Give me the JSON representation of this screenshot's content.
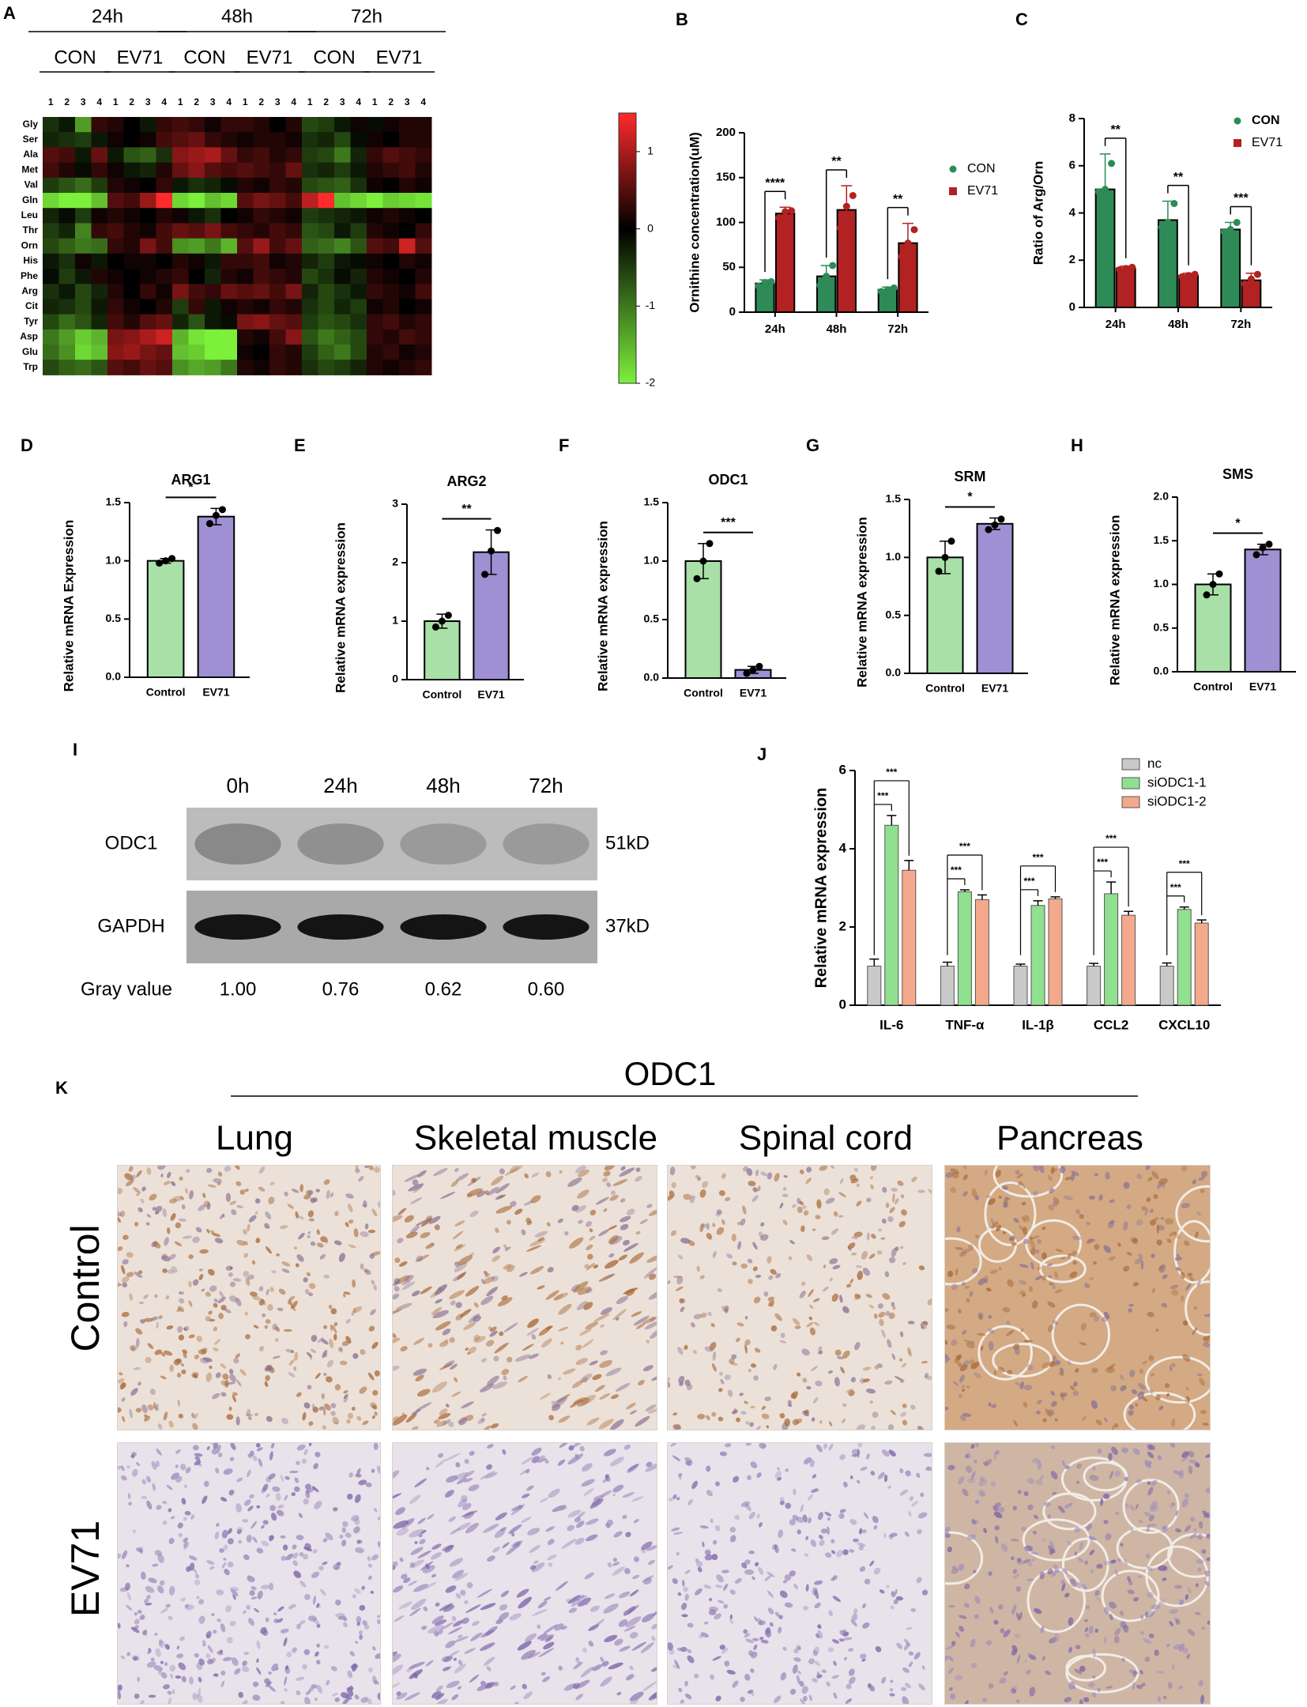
{
  "colors": {
    "green_dark": "#2e8b57",
    "red_dark": "#b22222",
    "green_light": "#a8e0a8",
    "purple": "#9f8fd3",
    "grey": "#c9c9c9",
    "green_mid": "#8fe08f",
    "salmon": "#f4a98c",
    "heat_high": "#ff2a2a",
    "heat_mid": "#000000",
    "heat_low": "#7cf03a",
    "stain_brown": "#a86a3a",
    "stain_purple": "#7a64a8",
    "tissue_bg_control": "#ece1d8",
    "tissue_bg_ev71": "#e8e2ea"
  },
  "panels": {
    "A": {
      "label": "A",
      "times": [
        "24h",
        "48h",
        "72h"
      ],
      "groups": [
        "CON",
        "EV71",
        "CON",
        "EV71",
        "CON",
        "EV71"
      ],
      "replicates": [
        "1",
        "2",
        "3",
        "4",
        "1",
        "2",
        "3",
        "4",
        "1",
        "2",
        "3",
        "4",
        "1",
        "2",
        "3",
        "4",
        "1",
        "2",
        "3",
        "4",
        "1",
        "2",
        "3",
        "4"
      ],
      "rows": [
        "Gly",
        "Ser",
        "Ala",
        "Met",
        "Val",
        "Gln",
        "Leu",
        "Thr",
        "Orn",
        "His",
        "Phe",
        "Arg",
        "Cit",
        "Tyr",
        "Asp",
        "Glu",
        "Trp"
      ],
      "colorbar_ticks": [
        "1",
        "0",
        "-1",
        "-2"
      ]
    },
    "B": {
      "label": "B"
    },
    "C": {
      "label": "C"
    },
    "D": {
      "label": "D"
    },
    "E": {
      "label": "E"
    },
    "F": {
      "label": "F"
    },
    "G": {
      "label": "G"
    },
    "H": {
      "label": "H"
    },
    "I": {
      "label": "I",
      "times": [
        "0h",
        "24h",
        "48h",
        "72h"
      ],
      "bands": [
        {
          "name": "ODC1",
          "kd": "51kD",
          "intensity": [
            0.3,
            0.26,
            0.2,
            0.2
          ]
        },
        {
          "name": "GAPDH",
          "kd": "37kD",
          "intensity": [
            1.0,
            1.0,
            1.0,
            1.0
          ]
        }
      ],
      "gray_label": "Gray value",
      "gray_values": [
        "1.00",
        "0.76",
        "0.62",
        "0.60"
      ]
    },
    "J": {
      "label": "J"
    },
    "K": {
      "label": "K",
      "title": "ODC1",
      "columns": [
        "Lung",
        "Skeletal muscle",
        "Spinal cord",
        "Pancreas"
      ],
      "rows": [
        "Control",
        "EV71"
      ]
    }
  },
  "chart_data": [
    {
      "id": "A",
      "type": "heatmap",
      "rows": [
        "Gly",
        "Ser",
        "Ala",
        "Met",
        "Val",
        "Gln",
        "Leu",
        "Thr",
        "Orn",
        "His",
        "Phe",
        "Arg",
        "Cit",
        "Tyr",
        "Asp",
        "Glu",
        "Trp"
      ],
      "column_groups": [
        "24h CON",
        "24h EV71",
        "48h CON",
        "48h EV71",
        "72h CON",
        "72h EV71"
      ],
      "replicates_per_group": 4,
      "values": [
        [
          -0.4,
          -0.2,
          -1.3,
          0.3,
          0.2,
          0.0,
          -0.2,
          0.3,
          0.4,
          0.3,
          0.1,
          0.3,
          0.3,
          0.2,
          0.0,
          0.2,
          -0.6,
          -0.5,
          -0.2,
          0.1,
          -0.1,
          0.1,
          0.2,
          0.2
        ],
        [
          -0.3,
          -0.4,
          -0.5,
          -0.2,
          0.1,
          0.0,
          0.1,
          0.4,
          0.5,
          0.6,
          0.3,
          0.2,
          0.1,
          0.2,
          0.2,
          0.1,
          -0.4,
          -0.3,
          -0.6,
          -0.1,
          0.1,
          0.0,
          0.2,
          0.2
        ],
        [
          0.5,
          0.4,
          -0.2,
          0.6,
          -0.2,
          -0.7,
          -0.8,
          -0.4,
          0.8,
          0.9,
          1.0,
          0.6,
          0.3,
          0.4,
          0.2,
          0.3,
          -0.5,
          -0.6,
          -1.0,
          -0.3,
          0.3,
          0.5,
          0.4,
          0.3
        ],
        [
          0.4,
          0.2,
          -0.1,
          0.3,
          0.1,
          -0.2,
          -0.3,
          0.2,
          0.6,
          0.8,
          0.5,
          0.4,
          0.5,
          0.4,
          0.3,
          0.6,
          -0.4,
          -0.3,
          -0.5,
          -0.2,
          0.2,
          0.3,
          0.4,
          0.2
        ],
        [
          -0.5,
          -0.7,
          -0.9,
          -0.5,
          0.2,
          0.1,
          0.0,
          0.3,
          -0.2,
          -0.4,
          -0.3,
          -0.1,
          0.2,
          0.1,
          0.3,
          0.2,
          -0.6,
          -0.7,
          -0.8,
          -0.4,
          0.1,
          0.0,
          0.2,
          0.1
        ],
        [
          -1.8,
          -2.0,
          -2.0,
          -1.6,
          0.5,
          0.4,
          0.9,
          1.5,
          -1.8,
          -2.0,
          -1.6,
          -1.8,
          0.5,
          0.7,
          0.6,
          0.4,
          1.1,
          1.6,
          -1.6,
          -1.8,
          -2.0,
          -1.7,
          -1.8,
          -1.9
        ],
        [
          -0.3,
          -0.1,
          -0.5,
          0.1,
          0.2,
          0.1,
          0.0,
          0.2,
          0.1,
          -0.2,
          -0.4,
          0.0,
          0.1,
          0.3,
          0.2,
          0.1,
          -0.5,
          -0.4,
          -0.3,
          -0.2,
          0.1,
          0.2,
          0.1,
          0.0
        ],
        [
          -0.5,
          -0.3,
          -1.1,
          0.3,
          0.4,
          0.2,
          0.1,
          0.4,
          0.6,
          0.5,
          0.7,
          0.4,
          0.3,
          0.2,
          0.4,
          0.3,
          -0.7,
          -0.6,
          -0.2,
          -0.5,
          0.2,
          0.1,
          0.0,
          0.3
        ],
        [
          -0.6,
          -0.8,
          -1.0,
          -0.9,
          0.3,
          0.2,
          0.7,
          0.4,
          -1.2,
          -1.3,
          -1.0,
          -1.5,
          0.5,
          0.9,
          0.4,
          0.6,
          -0.8,
          -0.9,
          -1.1,
          -0.7,
          0.5,
          0.4,
          1.2,
          0.5
        ],
        [
          -0.2,
          -0.4,
          0.1,
          -0.2,
          0.0,
          0.1,
          0.1,
          0.0,
          0.2,
          0.1,
          -0.2,
          0.3,
          0.3,
          0.4,
          0.1,
          0.2,
          -0.3,
          -0.5,
          -0.2,
          -0.1,
          0.1,
          0.0,
          0.2,
          0.1
        ],
        [
          -0.1,
          -0.5,
          -0.2,
          0.2,
          0.1,
          0.0,
          0.1,
          0.2,
          0.3,
          0.0,
          -0.3,
          0.2,
          0.1,
          0.4,
          0.3,
          0.2,
          -0.6,
          -0.4,
          -0.1,
          -0.3,
          0.2,
          0.1,
          0.0,
          0.2
        ],
        [
          -0.4,
          -0.2,
          -0.6,
          -0.3,
          0.2,
          0.0,
          0.3,
          0.1,
          0.7,
          0.4,
          0.3,
          0.6,
          0.5,
          0.6,
          0.4,
          0.7,
          -0.3,
          -0.6,
          -0.4,
          -0.2,
          0.3,
          0.2,
          0.1,
          0.4
        ],
        [
          -0.3,
          -0.4,
          -0.6,
          -0.2,
          0.3,
          0.1,
          0.0,
          0.2,
          -0.5,
          0.3,
          -0.2,
          0.1,
          0.2,
          0.1,
          0.3,
          0.2,
          -0.4,
          -0.6,
          -0.3,
          -0.5,
          0.1,
          0.2,
          0.0,
          0.1
        ],
        [
          -0.6,
          -0.9,
          -0.7,
          -0.3,
          0.4,
          0.2,
          0.5,
          0.6,
          -0.3,
          -0.7,
          -0.2,
          -0.1,
          0.7,
          0.8,
          0.6,
          0.5,
          -0.5,
          -0.7,
          -0.6,
          -0.4,
          0.3,
          0.4,
          0.2,
          0.3
        ],
        [
          -1.0,
          -1.3,
          -1.7,
          -1.5,
          0.7,
          0.8,
          1.0,
          1.2,
          -1.5,
          -1.9,
          -2.0,
          -2.0,
          0.2,
          0.1,
          0.4,
          0.8,
          -0.7,
          -1.0,
          -0.8,
          -0.6,
          0.3,
          0.2,
          0.4,
          0.3
        ],
        [
          -0.9,
          -1.2,
          -1.8,
          -1.6,
          0.8,
          0.9,
          0.7,
          0.6,
          -1.6,
          -1.7,
          -2.0,
          -2.0,
          0.1,
          0.0,
          0.3,
          0.2,
          -0.5,
          -0.8,
          -1.0,
          -0.6,
          0.2,
          0.3,
          0.1,
          0.2
        ],
        [
          -0.6,
          -0.8,
          -0.9,
          -0.7,
          0.5,
          0.4,
          0.6,
          0.5,
          -1.2,
          -1.4,
          -1.3,
          -1.0,
          0.2,
          0.1,
          0.3,
          0.2,
          -0.4,
          -0.6,
          -0.5,
          -0.3,
          0.2,
          0.1,
          0.2,
          0.3
        ]
      ],
      "color_range": [
        -2,
        1.5
      ]
    },
    {
      "id": "B",
      "type": "bar",
      "categories": [
        "24h",
        "48h",
        "72h"
      ],
      "series": [
        {
          "name": "CON",
          "values": [
            32,
            40,
            25
          ],
          "errors": [
            4,
            12,
            3
          ],
          "points": [
            [
              29,
              33,
              34
            ],
            [
              30,
              40,
              52
            ],
            [
              23,
              25,
              27
            ]
          ]
        },
        {
          "name": "EV71",
          "values": [
            110,
            114,
            77
          ],
          "errors": [
            7,
            27,
            22
          ],
          "points": [
            [
              105,
              112,
              113
            ],
            [
              94,
              118,
              130
            ],
            [
              62,
              77,
              92
            ]
          ]
        }
      ],
      "ylabel": "Ornithine concentration(uM)",
      "ylim": [
        0,
        200
      ],
      "yticks": [
        0,
        50,
        100,
        150,
        200
      ],
      "significance": [
        "****",
        "**",
        "**"
      ],
      "legend": "right"
    },
    {
      "id": "C",
      "type": "bar",
      "categories": [
        "24h",
        "48h",
        "72h"
      ],
      "series": [
        {
          "name": "CON",
          "values": [
            5.0,
            3.7,
            3.3
          ],
          "errors": [
            1.5,
            0.8,
            0.3
          ],
          "points": [
            [
              4.9,
              5.0,
              6.1
            ],
            [
              3.4,
              3.6,
              4.4
            ],
            [
              3.2,
              3.3,
              3.6
            ]
          ]
        },
        {
          "name": "EV71",
          "values": [
            1.65,
            1.35,
            1.15
          ],
          "errors": [
            0.1,
            0.1,
            0.3
          ],
          "points": [
            [
              1.6,
              1.65,
              1.7
            ],
            [
              1.3,
              1.35,
              1.4
            ],
            [
              1.0,
              1.2,
              1.4
            ]
          ]
        }
      ],
      "ylabel": "Ratio of Arg/Orn",
      "ylim": [
        0,
        8
      ],
      "yticks": [
        0,
        2,
        4,
        6,
        8
      ],
      "significance": [
        "**",
        "**",
        "***"
      ],
      "legend": "top-right"
    },
    {
      "id": "D",
      "type": "bar",
      "title": "ARG1",
      "categories": [
        "Control",
        "EV71"
      ],
      "values": [
        1.0,
        1.38
      ],
      "errors": [
        0.02,
        0.07
      ],
      "points": [
        [
          0.98,
          1.0,
          1.02
        ],
        [
          1.32,
          1.39,
          1.44
        ]
      ],
      "ylabel": "Relative mRNA Expression",
      "ylim": [
        0,
        1.5
      ],
      "yticks": [
        0.0,
        0.5,
        1.0,
        1.5
      ],
      "significance": "*"
    },
    {
      "id": "E",
      "type": "bar",
      "title": "ARG2",
      "categories": [
        "Control",
        "EV71"
      ],
      "values": [
        1.0,
        2.18
      ],
      "errors": [
        0.12,
        0.38
      ],
      "points": [
        [
          0.9,
          1.0,
          1.1
        ],
        [
          1.8,
          2.2,
          2.55
        ]
      ],
      "ylabel": "Relative mRNA expression",
      "ylim": [
        0,
        3
      ],
      "yticks": [
        0,
        1,
        2,
        3
      ],
      "significance": "**"
    },
    {
      "id": "F",
      "type": "bar",
      "title": "ODC1",
      "categories": [
        "Control",
        "EV71"
      ],
      "values": [
        1.0,
        0.07
      ],
      "errors": [
        0.15,
        0.03
      ],
      "points": [
        [
          0.85,
          1.0,
          1.15
        ],
        [
          0.04,
          0.07,
          0.1
        ]
      ],
      "ylabel": "Relative mRNA expression",
      "ylim": [
        0,
        1.5
      ],
      "yticks": [
        0.0,
        0.5,
        1.0,
        1.5
      ],
      "significance": "***"
    },
    {
      "id": "G",
      "type": "bar",
      "title": "SRM",
      "categories": [
        "Control",
        "EV71"
      ],
      "values": [
        1.0,
        1.29
      ],
      "errors": [
        0.14,
        0.05
      ],
      "points": [
        [
          0.88,
          1.0,
          1.14
        ],
        [
          1.24,
          1.28,
          1.33
        ]
      ],
      "ylabel": "Relative mRNA expression",
      "ylim": [
        0,
        1.5
      ],
      "yticks": [
        0.0,
        0.5,
        1.0,
        1.5
      ],
      "significance": "*"
    },
    {
      "id": "H",
      "type": "bar",
      "title": "SMS",
      "categories": [
        "Control",
        "EV71"
      ],
      "values": [
        1.0,
        1.4
      ],
      "errors": [
        0.12,
        0.06
      ],
      "points": [
        [
          0.88,
          1.0,
          1.12
        ],
        [
          1.34,
          1.42,
          1.46
        ]
      ],
      "ylabel": "Relative mRNA expression",
      "ylim": [
        0,
        2.0
      ],
      "yticks": [
        0.0,
        0.5,
        1.0,
        1.5,
        2.0
      ],
      "significance": "*"
    },
    {
      "id": "J",
      "type": "bar",
      "categories": [
        "IL-6",
        "TNF-α",
        "IL-1β",
        "CCL2",
        "CXCL10"
      ],
      "series": [
        {
          "name": "nc",
          "values": [
            1.0,
            1.0,
            1.0,
            1.0,
            1.0
          ],
          "errors": [
            0.18,
            0.1,
            0.05,
            0.07,
            0.08
          ]
        },
        {
          "name": "siODC1-1",
          "values": [
            4.6,
            2.9,
            2.55,
            2.85,
            2.45
          ],
          "errors": [
            0.25,
            0.05,
            0.12,
            0.3,
            0.06
          ]
        },
        {
          "name": "siODC1-2",
          "values": [
            3.45,
            2.7,
            2.72,
            2.3,
            2.1
          ],
          "errors": [
            0.25,
            0.12,
            0.05,
            0.1,
            0.08
          ]
        }
      ],
      "ylabel": "Relative mRNA expression",
      "ylim": [
        0,
        6
      ],
      "yticks": [
        0,
        2,
        4,
        6
      ],
      "significance": [
        [
          "***",
          "***"
        ],
        [
          "***",
          "***"
        ],
        [
          "***",
          "***"
        ],
        [
          "***",
          "***"
        ],
        [
          "***",
          "***"
        ]
      ],
      "legend": "top-right"
    }
  ]
}
